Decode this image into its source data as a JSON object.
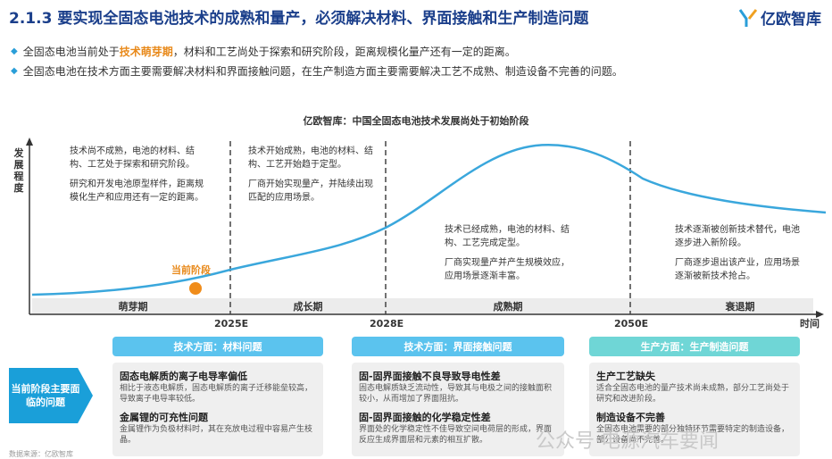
{
  "header": {
    "title": "2.1.3 要实现全固态电池技术的成熟和量产，必须解决材料、界面接触和生产制造问题",
    "logo_text": "亿欧智库"
  },
  "bullets": [
    {
      "before": "全固态电池当前处于",
      "highlight": "技术萌芽期",
      "after": "，材料和工艺尚处于探索和研究阶段，距离规模化量产还有一定的距离。"
    },
    {
      "before": "全固态电池在技术方面主要需要解决材料和界面接触问题，在生产制造方面主要需要解决工艺不成熟、制造设备不完善的问题。",
      "highlight": "",
      "after": ""
    }
  ],
  "diagram": {
    "title": "亿欧智库：中国全固态电池技术发展尚处于初始阶段",
    "y_label": "发展程度",
    "x_label": "时间",
    "current_label": "当前阶段",
    "ticks": [
      "2025E",
      "2028E",
      "2050E"
    ],
    "stages": [
      "萌芽期",
      "成长期",
      "成熟期",
      "衰退期"
    ],
    "phase_texts": [
      [
        "技术尚不成熟，电池的材料、结构、工艺处于探索和研究阶段。",
        "研究和开发电池原型样件，距离规模化生产和应用还有一定的距离。"
      ],
      [
        "技术开始成熟，电池的材料、结构、工艺开始趋于定型。",
        "厂商开始实现量产，并陆续出现匹配的应用场景。"
      ],
      [
        "技术已经成熟，电池的材料、结构、工艺完成定型。",
        "厂商实现量产并产生规模效应，应用场景逐渐丰富。"
      ],
      [
        "技术逐渐被创新技术替代，电池逐步进入新阶段。",
        "厂商逐步退出该产业，应用场景逐渐被新技术抢占。"
      ]
    ]
  },
  "issues": {
    "arrow_label": "当前阶段主要面临的问题",
    "columns": [
      {
        "header": "技术方面：材料问题",
        "items": [
          {
            "title": "固态电解质的离子电导率偏低",
            "desc": "相比于液态电解质，固态电解质的离子迁移能垒较高，导致离子电导率较低。"
          },
          {
            "title": "金属锂的可充性问题",
            "desc": "金属锂作为负极材料时，其在充放电过程中容易产生枝晶。"
          }
        ]
      },
      {
        "header": "技术方面：界面接触问题",
        "items": [
          {
            "title": "固-固界面接触不良导致导电性差",
            "desc": "固态电解质缺乏流动性，导致其与电极之间的接触面积较小，从而增加了界面阻抗。"
          },
          {
            "title": "固-固界面接触的化学稳定性差",
            "desc": "界面处的化学稳定性不佳导致空间电荷层的形成，界面反应生成界面层和元素的相互扩散。"
          }
        ]
      },
      {
        "header": "生产方面：生产制造问题",
        "items": [
          {
            "title": "生产工艺缺失",
            "desc": "适合全固态电池的量产技术尚未成熟，部分工艺尚处于研究和改进阶段。"
          },
          {
            "title": "制造设备不完善",
            "desc": "全固态电池需要的部分独特环节需要特定的制造设备，部分设备尚不完善。"
          }
        ]
      }
    ]
  },
  "watermark": "公众号·电源汽车要闻",
  "source": "数据来源：亿欧智库",
  "colors": {
    "title": "#1b3f8b",
    "accent": "#1a9fd9",
    "highlight": "#e8891a",
    "curve": "#3aa7dc",
    "header_blue": "#5bc3ee",
    "header_teal": "#6fd6d6"
  }
}
